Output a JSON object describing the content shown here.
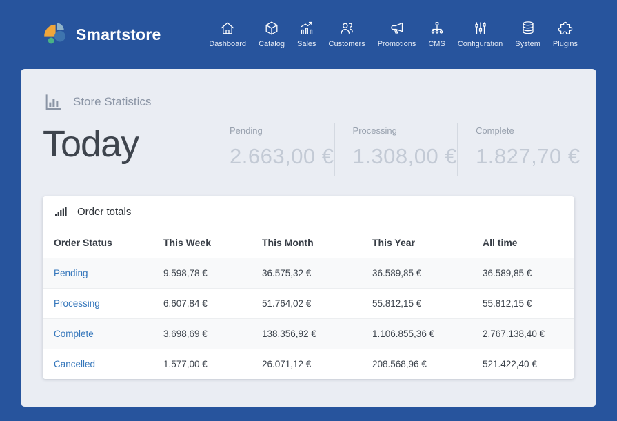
{
  "brand": {
    "name": "Smartstore"
  },
  "nav": {
    "items": [
      {
        "label": "Dashboard",
        "icon": "home-icon"
      },
      {
        "label": "Catalog",
        "icon": "cube-icon"
      },
      {
        "label": "Sales",
        "icon": "sales-chart-icon"
      },
      {
        "label": "Customers",
        "icon": "users-icon"
      },
      {
        "label": "Promotions",
        "icon": "megaphone-icon"
      },
      {
        "label": "CMS",
        "icon": "sitemap-icon"
      },
      {
        "label": "Configuration",
        "icon": "sliders-icon"
      },
      {
        "label": "System",
        "icon": "database-icon"
      },
      {
        "label": "Plugins",
        "icon": "puzzle-icon"
      }
    ]
  },
  "page": {
    "section_title": "Store Statistics",
    "section_icon": "bar-chart-frame-icon",
    "period_title": "Today",
    "stats": [
      {
        "label": "Pending",
        "value": "2.663,00 €"
      },
      {
        "label": "Processing",
        "value": "1.308,00 €"
      },
      {
        "label": "Complete",
        "value": "1.827,70 €"
      }
    ]
  },
  "order_totals": {
    "title": "Order totals",
    "icon": "ascending-bars-icon",
    "columns": [
      "Order Status",
      "This Week",
      "This Month",
      "This Year",
      "All time"
    ],
    "rows": [
      {
        "status": "Pending",
        "values": [
          "9.598,78 €",
          "36.575,32 €",
          "36.589,85 €",
          "36.589,85 €"
        ]
      },
      {
        "status": "Processing",
        "values": [
          "6.607,84 €",
          "51.764,02 €",
          "55.812,15 €",
          "55.812,15 €"
        ]
      },
      {
        "status": "Complete",
        "values": [
          "3.698,69 €",
          "138.356,92 €",
          "1.106.855,36 €",
          "2.767.138,40 €"
        ]
      },
      {
        "status": "Cancelled",
        "values": [
          "1.577,00 €",
          "26.071,12 €",
          "208.568,96 €",
          "521.422,40 €"
        ]
      }
    ]
  },
  "colors": {
    "topbar_bg": "#27549d",
    "panel_bg": "#eaedf3",
    "link_blue": "#3476bb",
    "stat_value_gray": "#c3cad5",
    "logo_orange": "#efa63b",
    "logo_blue": "#3e74ae",
    "logo_light_blue": "#8fb3c9",
    "logo_green": "#49b185"
  }
}
